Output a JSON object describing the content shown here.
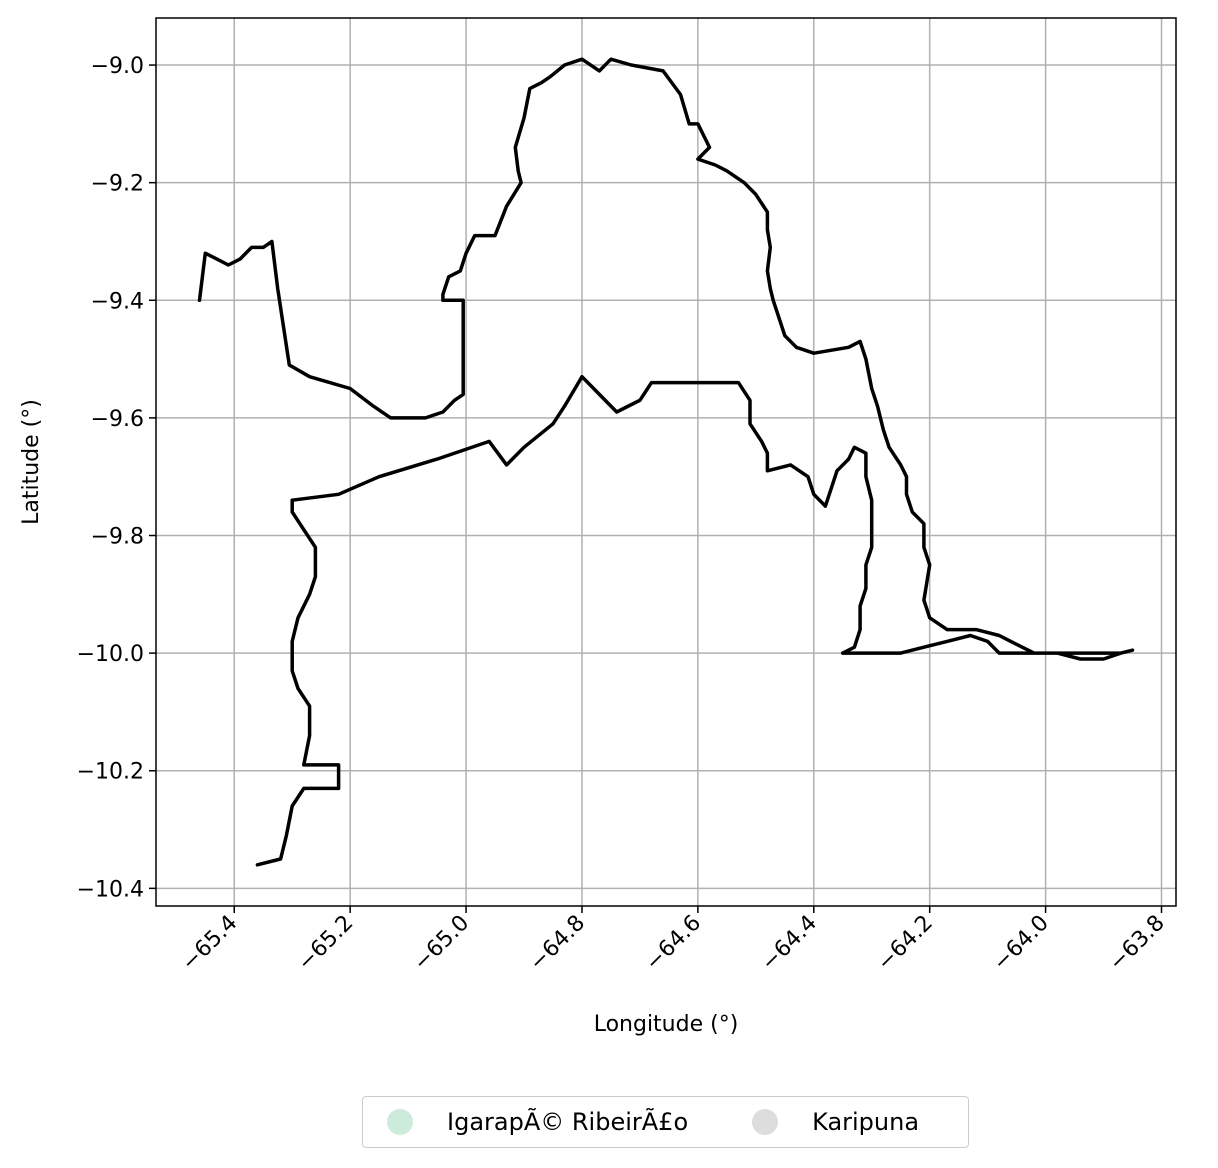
{
  "chart_data": {
    "type": "map",
    "title": "",
    "xlabel": "Longitude (°)",
    "ylabel": "Latitude (°)",
    "xlim": [
      -65.535,
      -63.775
    ],
    "ylim": [
      -10.43,
      -8.92
    ],
    "xticks": [
      -65.4,
      -65.2,
      -65.0,
      -64.8,
      -64.6,
      -64.4,
      -64.2,
      -64.0,
      -63.8
    ],
    "xtick_labels": [
      "−65.4",
      "−65.2",
      "−65.0",
      "−64.8",
      "−64.6",
      "−64.4",
      "−64.2",
      "−64.0",
      "−63.8"
    ],
    "yticks": [
      -9.0,
      -9.2,
      -9.4,
      -9.6,
      -9.8,
      -10.0,
      -10.2,
      -10.4
    ],
    "ytick_labels": [
      "−9.0",
      "−9.2",
      "−9.4",
      "−9.6",
      "−9.8",
      "−10.0",
      "−10.2",
      "−10.4"
    ],
    "grid": true,
    "legend_position": "bottom-center",
    "series": [
      {
        "name": "IgarapÃ© RibeirÃ£o",
        "color": "#cdebdb",
        "edgecolor": "#000000",
        "polygons": [
          [
            [
              -65.46,
              -9.4
            ],
            [
              -65.45,
              -9.32
            ],
            [
              -65.43,
              -9.33
            ],
            [
              -65.41,
              -9.34
            ],
            [
              -65.39,
              -9.33
            ],
            [
              -65.37,
              -9.31
            ],
            [
              -65.35,
              -9.31
            ],
            [
              -65.335,
              -9.3
            ],
            [
              -65.325,
              -9.38
            ],
            [
              -65.305,
              -9.51
            ],
            [
              -65.27,
              -9.53
            ],
            [
              -65.2,
              -9.55
            ],
            [
              -65.16,
              -9.58
            ],
            [
              -65.13,
              -9.6
            ],
            [
              -65.07,
              -9.6
            ],
            [
              -65.04,
              -9.59
            ],
            [
              -65.02,
              -9.57
            ],
            [
              -65.005,
              -9.56
            ],
            [
              -65.005,
              -9.4
            ],
            [
              -65.04,
              -9.4
            ],
            [
              -65.04,
              -9.39
            ],
            [
              -65.03,
              -9.36
            ],
            [
              -65.01,
              -9.35
            ],
            [
              -65.0,
              -9.32
            ],
            [
              -64.985,
              -9.29
            ],
            [
              -64.95,
              -9.29
            ],
            [
              -64.93,
              -9.24
            ],
            [
              -64.905,
              -9.2
            ],
            [
              -64.91,
              -9.18
            ],
            [
              -64.915,
              -9.14
            ],
            [
              -64.9,
              -9.09
            ],
            [
              -64.89,
              -9.04
            ],
            [
              -64.87,
              -9.03
            ],
            [
              -64.855,
              -9.02
            ],
            [
              -64.83,
              -9.0
            ],
            [
              -64.8,
              -8.99
            ],
            [
              -64.77,
              -9.01
            ],
            [
              -64.75,
              -8.99
            ],
            [
              -64.715,
              -9.0
            ],
            [
              -64.66,
              -9.01
            ],
            [
              -64.63,
              -9.05
            ],
            [
              -64.615,
              -9.1
            ],
            [
              -64.6,
              -9.1
            ],
            [
              -64.59,
              -9.12
            ],
            [
              -64.58,
              -9.14
            ],
            [
              -64.6,
              -9.16
            ],
            [
              -64.57,
              -9.17
            ],
            [
              -64.55,
              -9.18
            ],
            [
              -64.52,
              -9.2
            ],
            [
              -64.5,
              -9.22
            ],
            [
              -64.48,
              -9.25
            ],
            [
              -64.48,
              -9.28
            ],
            [
              -64.475,
              -9.31
            ],
            [
              -64.48,
              -9.35
            ],
            [
              -64.475,
              -9.38
            ],
            [
              -64.47,
              -9.4
            ],
            [
              -64.46,
              -9.43
            ],
            [
              -64.45,
              -9.46
            ],
            [
              -64.43,
              -9.48
            ],
            [
              -64.4,
              -9.49
            ],
            [
              -64.34,
              -9.48
            ],
            [
              -64.32,
              -9.47
            ],
            [
              -64.31,
              -9.5
            ],
            [
              -64.3,
              -9.55
            ],
            [
              -64.29,
              -9.58
            ],
            [
              -64.28,
              -9.62
            ],
            [
              -64.27,
              -9.65
            ],
            [
              -64.25,
              -9.68
            ],
            [
              -64.24,
              -9.7
            ],
            [
              -64.24,
              -9.73
            ],
            [
              -64.23,
              -9.76
            ],
            [
              -64.21,
              -9.78
            ],
            [
              -64.21,
              -9.82
            ],
            [
              -64.2,
              -9.85
            ],
            [
              -64.205,
              -9.88
            ],
            [
              -64.21,
              -9.91
            ],
            [
              -64.2,
              -9.94
            ],
            [
              -64.17,
              -9.96
            ],
            [
              -64.12,
              -9.96
            ],
            [
              -64.08,
              -9.97
            ],
            [
              -64.06,
              -9.98
            ],
            [
              -64.02,
              -10.0
            ],
            [
              -63.98,
              -10.0
            ],
            [
              -63.93,
              -10.0
            ],
            [
              -63.87,
              -10.0
            ],
            [
              -63.85,
              -9.995
            ],
            [
              -63.87,
              -10.0
            ],
            [
              -63.9,
              -10.01
            ],
            [
              -63.94,
              -10.01
            ],
            [
              -63.98,
              -10.0
            ],
            [
              -64.02,
              -10.0
            ],
            [
              -64.06,
              -10.0
            ],
            [
              -64.08,
              -10.0
            ],
            [
              -64.1,
              -9.98
            ],
            [
              -64.13,
              -9.97
            ],
            [
              -64.17,
              -9.98
            ],
            [
              -64.21,
              -9.99
            ],
            [
              -64.25,
              -10.0
            ],
            [
              -64.3,
              -10.0
            ],
            [
              -64.35,
              -10.0
            ]
          ]
        ]
      },
      {
        "name": "Karipuna",
        "color": "#dddddd",
        "edgecolor": "#000000",
        "polygons": [
          [
            [
              -65.3,
              -9.74
            ],
            [
              -65.22,
              -9.73
            ],
            [
              -65.15,
              -9.7
            ],
            [
              -65.05,
              -9.67
            ],
            [
              -64.96,
              -9.64
            ],
            [
              -64.93,
              -9.68
            ],
            [
              -64.9,
              -9.65
            ],
            [
              -64.85,
              -9.61
            ],
            [
              -64.83,
              -9.58
            ],
            [
              -64.8,
              -9.53
            ],
            [
              -64.77,
              -9.56
            ],
            [
              -64.74,
              -9.59
            ],
            [
              -64.7,
              -9.57
            ],
            [
              -64.68,
              -9.54
            ],
            [
              -64.62,
              -9.54
            ],
            [
              -64.58,
              -9.54
            ],
            [
              -64.53,
              -9.54
            ],
            [
              -64.51,
              -9.57
            ],
            [
              -64.51,
              -9.61
            ],
            [
              -64.49,
              -9.64
            ],
            [
              -64.48,
              -9.66
            ],
            [
              -64.48,
              -9.69
            ],
            [
              -64.44,
              -9.68
            ],
            [
              -64.41,
              -9.7
            ],
            [
              -64.4,
              -9.73
            ],
            [
              -64.38,
              -9.75
            ],
            [
              -64.37,
              -9.72
            ],
            [
              -64.36,
              -9.69
            ],
            [
              -64.34,
              -9.67
            ],
            [
              -64.33,
              -9.65
            ],
            [
              -64.31,
              -9.66
            ],
            [
              -64.31,
              -9.7
            ],
            [
              -64.3,
              -9.74
            ],
            [
              -64.3,
              -9.78
            ],
            [
              -64.3,
              -9.82
            ],
            [
              -64.31,
              -9.85
            ],
            [
              -64.31,
              -9.89
            ],
            [
              -64.32,
              -9.92
            ],
            [
              -64.32,
              -9.96
            ],
            [
              -64.33,
              -9.99
            ],
            [
              -64.35,
              -10.0
            ]
          ],
          [
            [
              -65.3,
              -9.74
            ],
            [
              -65.3,
              -9.76
            ],
            [
              -65.26,
              -9.82
            ],
            [
              -65.26,
              -9.87
            ],
            [
              -65.27,
              -9.9
            ],
            [
              -65.29,
              -9.94
            ],
            [
              -65.3,
              -9.98
            ],
            [
              -65.3,
              -10.03
            ],
            [
              -65.29,
              -10.06
            ],
            [
              -65.27,
              -10.09
            ],
            [
              -65.27,
              -10.14
            ],
            [
              -65.28,
              -10.19
            ],
            [
              -65.22,
              -10.19
            ],
            [
              -65.22,
              -10.23
            ],
            [
              -65.28,
              -10.23
            ],
            [
              -65.3,
              -10.26
            ],
            [
              -65.31,
              -10.31
            ],
            [
              -65.32,
              -10.35
            ],
            [
              -65.36,
              -10.36
            ]
          ]
        ]
      }
    ]
  },
  "legend": {
    "items": [
      {
        "label": "IgarapÃ© RibeirÃ£o",
        "color": "#cdebdb"
      },
      {
        "label": "Karipuna",
        "color": "#dddddd"
      }
    ]
  }
}
